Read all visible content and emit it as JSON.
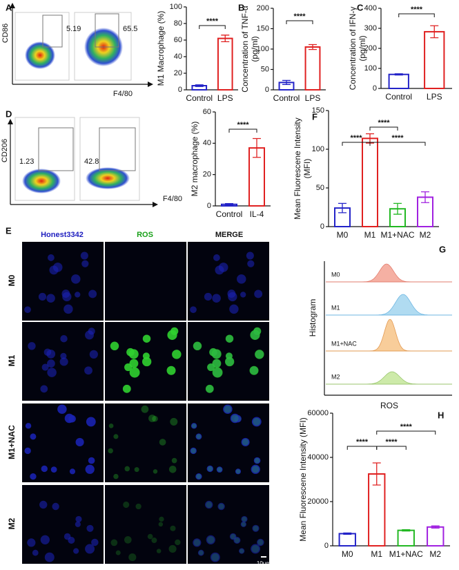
{
  "panel_labels": [
    "A",
    "B",
    "C",
    "D",
    "E",
    "F",
    "G",
    "H"
  ],
  "flow": [
    {
      "y_label": "CD86",
      "x_label": "F4/80",
      "gates": [
        5.19,
        65.5
      ]
    },
    {
      "y_label": "CD206",
      "x_label": "F4/80",
      "gates": [
        1.23,
        42.8
      ]
    }
  ],
  "microscopy": {
    "columns": [
      "Honest3342",
      "ROS",
      "MERGE"
    ],
    "rows": [
      "M0",
      "M1",
      "M1+NAC",
      "M2"
    ],
    "scale_bar": "10μm"
  },
  "histogram": {
    "y_label": "Histogram",
    "x_label": "ROS",
    "labels": [
      "M0",
      "M1",
      "M1+NAC",
      "M2"
    ]
  },
  "chart_data": [
    {
      "type": "bar",
      "ylabel": [
        "M1 Macrophage (%)"
      ],
      "categories": [
        "Control",
        "LPS"
      ],
      "values": [
        5,
        62
      ],
      "errors": [
        1,
        4
      ],
      "colors": [
        "#2323c8",
        "#e02020"
      ],
      "ylim": [
        0,
        100
      ],
      "yticks": [
        0,
        20,
        40,
        60,
        80,
        100
      ],
      "annotations": [
        {
          "label": "****",
          "between": [
            "Control",
            "LPS"
          ]
        }
      ]
    },
    {
      "type": "bar",
      "ylabel": [
        "Concentration of TNF-α",
        "(pg/ml)"
      ],
      "categories": [
        "Control",
        "LPS"
      ],
      "values": [
        18,
        105
      ],
      "errors": [
        5,
        6
      ],
      "colors": [
        "#2323c8",
        "#e02020"
      ],
      "ylim": [
        0,
        200
      ],
      "yticks": [
        0,
        50,
        100,
        150,
        200
      ],
      "annotations": [
        {
          "label": "****",
          "between": [
            "Control",
            "LPS"
          ]
        }
      ]
    },
    {
      "type": "bar",
      "ylabel": [
        "Concentration of IFN-γ",
        "(pg/ml)"
      ],
      "categories": [
        "Control",
        "LPS"
      ],
      "values": [
        70,
        283
      ],
      "errors": [
        3,
        30
      ],
      "colors": [
        "#2323c8",
        "#e02020"
      ],
      "ylim": [
        0,
        400
      ],
      "yticks": [
        0,
        100,
        200,
        300,
        400
      ],
      "annotations": [
        {
          "label": "****",
          "between": [
            "Control",
            "LPS"
          ]
        }
      ]
    },
    {
      "type": "bar",
      "ylabel": [
        "M2 macrophage (%)"
      ],
      "categories": [
        "Control",
        "IL-4"
      ],
      "values": [
        1,
        37
      ],
      "errors": [
        0.5,
        6
      ],
      "colors": [
        "#2323c8",
        "#e02020"
      ],
      "ylim": [
        0,
        60
      ],
      "yticks": [
        0,
        20,
        40,
        60
      ],
      "annotations": [
        {
          "label": "****",
          "between": [
            "Control",
            "IL-4"
          ]
        }
      ]
    },
    {
      "type": "bar",
      "ylabel": [
        "Mean Fluorescene Intensity",
        "(MFI)"
      ],
      "categories": [
        "M0",
        "M1",
        "M1+NAC",
        "M2"
      ],
      "values": [
        24,
        114,
        23,
        38
      ],
      "errors": [
        6,
        6,
        7,
        7
      ],
      "colors": [
        "#2323c8",
        "#e02020",
        "#22b822",
        "#a020e0"
      ],
      "ylim": [
        0,
        150
      ],
      "yticks": [
        0,
        50,
        100,
        150
      ],
      "annotations": [
        {
          "label": "****",
          "between": [
            "M0",
            "M1"
          ]
        },
        {
          "label": "****",
          "between": [
            "M1",
            "M1+NAC"
          ]
        },
        {
          "label": "****",
          "between": [
            "M1",
            "M2"
          ]
        }
      ]
    },
    {
      "type": "bar",
      "ylabel": [
        "Mean Fluorescene Intensity (MFI)"
      ],
      "categories": [
        "M0",
        "M1",
        "M1+NAC",
        "M2"
      ],
      "values": [
        5500,
        32500,
        7000,
        8500
      ],
      "errors": [
        300,
        5000,
        300,
        500
      ],
      "colors": [
        "#2323c8",
        "#e02020",
        "#22b822",
        "#a020e0"
      ],
      "ylim": [
        0,
        60000
      ],
      "yticks": [
        0,
        20000,
        40000,
        60000
      ],
      "annotations": [
        {
          "label": "****",
          "between": [
            "M0",
            "M1"
          ]
        },
        {
          "label": "****",
          "between": [
            "M1",
            "M1+NAC"
          ]
        },
        {
          "label": "****",
          "between": [
            "M1",
            "M2"
          ]
        }
      ]
    }
  ]
}
